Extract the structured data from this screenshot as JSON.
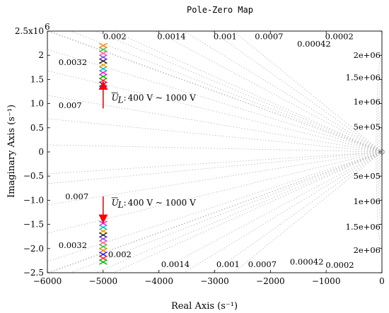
{
  "chart_data": {
    "type": "scatter",
    "title": "Pole-Zero Map",
    "xlabel": "Real Axis (s⁻¹)",
    "ylabel": "Imaginary Axis (s⁻¹)",
    "xlim": [
      -6000,
      0
    ],
    "ylim": [
      -2500000,
      2500000
    ],
    "grid": true,
    "x_ticks": [
      {
        "v": -6000,
        "label": "−6000"
      },
      {
        "v": -5000,
        "label": "−5000"
      },
      {
        "v": -4000,
        "label": "−4000"
      },
      {
        "v": -3000,
        "label": "−3000"
      },
      {
        "v": -2000,
        "label": "−2000"
      },
      {
        "v": -1000,
        "label": "−1000"
      },
      {
        "v": 0,
        "label": "0"
      }
    ],
    "y_ticks": [
      {
        "v": 2500000,
        "label": "2.5x10"
      },
      {
        "v": 2000000,
        "label": "2"
      },
      {
        "v": 1500000,
        "label": "1.5"
      },
      {
        "v": 1000000,
        "label": "1.0"
      },
      {
        "v": 500000,
        "label": "0.5"
      },
      {
        "v": 0,
        "label": "0"
      },
      {
        "v": -500000,
        "label": "−0.5"
      },
      {
        "v": -1000000,
        "label": "−1.0"
      },
      {
        "v": -1500000,
        "label": "−1.5"
      },
      {
        "v": -2000000,
        "label": "−2.0"
      },
      {
        "v": -2500000,
        "label": "−2.5"
      }
    ],
    "y_exponent": "6",
    "damping_labels_upper": [
      {
        "label": "0.002",
        "x": -5000,
        "y": 2330000
      },
      {
        "label": "0.0014",
        "x": -4030,
        "y": 2330000
      },
      {
        "label": "0.001",
        "x": -3020,
        "y": 2330000
      },
      {
        "label": "0.0007",
        "x": -2280,
        "y": 2330000
      },
      {
        "label": "0.00042",
        "x": -1520,
        "y": 2180000
      },
      {
        "label": "0.0002",
        "x": -1020,
        "y": 2330000
      },
      {
        "label": "0.0032",
        "x": -5800,
        "y": 1800000
      },
      {
        "label": "0.007",
        "x": -5800,
        "y": 910000
      }
    ],
    "damping_labels_lower": [
      {
        "label": "0.007",
        "x": -5680,
        "y": -980000
      },
      {
        "label": "0.0032",
        "x": -5800,
        "y": -1990000
      },
      {
        "label": "0.002",
        "x": -4910,
        "y": -2180000
      },
      {
        "label": "0.0014",
        "x": -3960,
        "y": -2380000
      },
      {
        "label": "0.001",
        "x": -2970,
        "y": -2380000
      },
      {
        "label": "0.0007",
        "x": -2400,
        "y": -2380000
      },
      {
        "label": "0.00042",
        "x": -1650,
        "y": -2330000
      },
      {
        "label": "0.0002",
        "x": -1010,
        "y": -2400000
      }
    ],
    "freq_labels_upper": [
      {
        "label": "2e+06",
        "y": 2000000
      },
      {
        "label": "1.5e+06",
        "y": 1540000
      },
      {
        "label": "1e+06",
        "y": 1040000
      },
      {
        "label": "5e+05",
        "y": 520000
      }
    ],
    "freq_labels_lower": [
      {
        "label": "5e+05",
        "y": -500000
      },
      {
        "label": "1e+06",
        "y": -1020000
      },
      {
        "label": "1.5e+06",
        "y": -1550000
      },
      {
        "label": "2e+06",
        "y": -2030000
      }
    ],
    "pole_x": -5000,
    "upper_poles_y": [
      1400000,
      1480000,
      1560000,
      1640000,
      1720000,
      1800000,
      1880000,
      1960000,
      2040000,
      2120000,
      2200000
    ],
    "lower_poles_y": [
      -1480000,
      -1560000,
      -1640000,
      -1720000,
      -1800000,
      -1880000,
      -1960000,
      -2040000,
      -2120000,
      -2200000,
      -2280000
    ],
    "pole_colors": [
      "#1a1aff",
      "#ff2020",
      "#00b400",
      "#e020e0",
      "#00c0c0",
      "#e0a000",
      "#202020",
      "#8040ff",
      "#ff60a0",
      "#40c040",
      "#ff8000"
    ],
    "origin_marker": {
      "x": 0,
      "y": 0
    },
    "annotations": [
      {
        "symbol": "U",
        "subscript": "L",
        "text": "400 V ~ 1000 V",
        "x": -4850,
        "y": 1060000
      },
      {
        "symbol": "U",
        "subscript": "L",
        "text": "400 V ~ 1000 V",
        "x": -4850,
        "y": -1110000
      }
    ],
    "arrows": [
      {
        "x": -5000,
        "y_from": 900000,
        "y_to": 1380000,
        "color": "#ff0000"
      },
      {
        "x": -5000,
        "y_from": -920000,
        "y_to": -1390000,
        "color": "#ff0000"
      }
    ]
  }
}
